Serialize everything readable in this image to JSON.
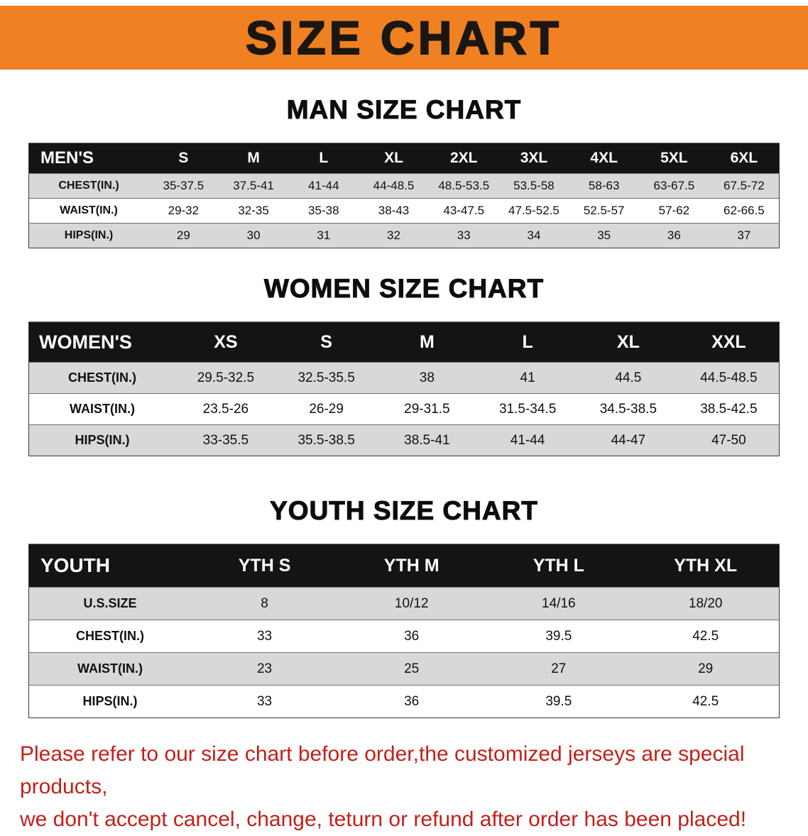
{
  "banner": {
    "title": "SIZE CHART"
  },
  "sections": [
    {
      "heading": "MAN SIZE CHART",
      "table": {
        "header": [
          "MEN'S",
          "S",
          "M",
          "L",
          "XL",
          "2XL",
          "3XL",
          "4XL",
          "5XL",
          "6XL"
        ],
        "rows": [
          [
            "CHEST(IN.)",
            "35-37.5",
            "37.5-41",
            "41-44",
            "44-48.5",
            "48.5-53.5",
            "53.5-58",
            "58-63",
            "63-67.5",
            "67.5-72"
          ],
          [
            "WAIST(IN.)",
            "29-32",
            "32-35",
            "35-38",
            "38-43",
            "43-47.5",
            "47.5-52.5",
            "52.5-57",
            "57-62",
            "62-66.5"
          ],
          [
            "HIPS(IN.)",
            "29",
            "30",
            "31",
            "32",
            "33",
            "34",
            "35",
            "36",
            "37"
          ]
        ]
      }
    },
    {
      "heading": "WOMEN SIZE CHART",
      "table": {
        "header": [
          "WOMEN'S",
          "XS",
          "S",
          "M",
          "L",
          "XL",
          "XXL"
        ],
        "rows": [
          [
            "CHEST(IN.)",
            "29.5-32.5",
            "32.5-35.5",
            "38",
            "41",
            "44.5",
            "44.5-48.5"
          ],
          [
            "WAIST(IN.)",
            "23.5-26",
            "26-29",
            "29-31.5",
            "31.5-34.5",
            "34.5-38.5",
            "38.5-42.5"
          ],
          [
            "HIPS(IN.)",
            "33-35.5",
            "35.5-38.5",
            "38.5-41",
            "41-44",
            "44-47",
            "47-50"
          ]
        ]
      }
    },
    {
      "heading": "YOUTH SIZE CHART",
      "table": {
        "header": [
          "YOUTH",
          "YTH S",
          "YTH M",
          "YTH L",
          "YTH XL"
        ],
        "rows": [
          [
            "U.S.SIZE",
            "8",
            "10/12",
            "14/16",
            "18/20"
          ],
          [
            "CHEST(IN.)",
            "33",
            "36",
            "39.5",
            "42.5"
          ],
          [
            "WAIST(IN.)",
            "23",
            "25",
            "27",
            "29"
          ],
          [
            "HIPS(IN.)",
            "33",
            "36",
            "39.5",
            "42.5"
          ]
        ]
      }
    }
  ],
  "footer": {
    "line1": "Please refer to our size chart before order,the customized jerseys are special products,",
    "line2": "we don't accept cancel, change, teturn or refund after order has been placed!"
  },
  "colors": {
    "banner_bg": "#f08122",
    "banner_text": "#1a1713",
    "header_bg": "#141414",
    "header_text": "#ffffff",
    "row_alt": "#d8d8d8",
    "footer_text": "#c32019"
  }
}
